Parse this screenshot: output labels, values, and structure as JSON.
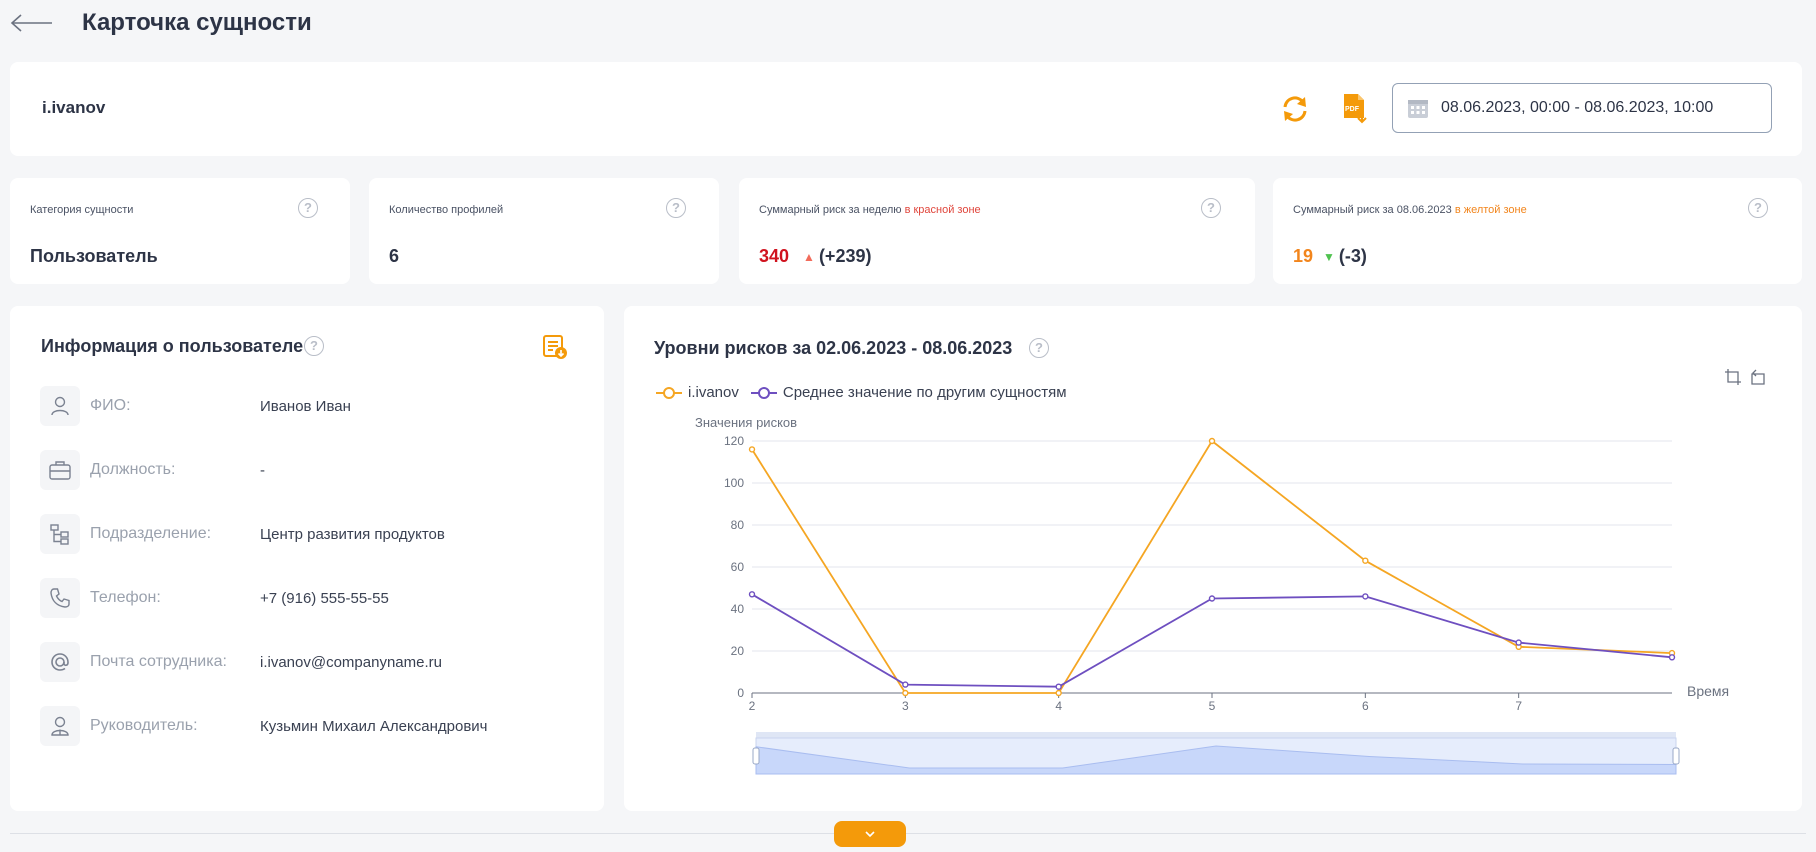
{
  "header": {
    "title": "Карточка сущности"
  },
  "entity": {
    "name": "i.ivanov",
    "date_range": "08.06.2023, 00:00 - 08.06.2023, 10:00",
    "pdf_label": "PDF"
  },
  "kpis": [
    {
      "label": "Категория сущности",
      "value": "Пользователь"
    },
    {
      "label": "Количество профилей",
      "value": "6"
    },
    {
      "label_prefix": "Суммарный риск за неделю ",
      "label_zone": "в красной зоне",
      "value": "340",
      "delta_icon": "▲",
      "delta": "(+239)"
    },
    {
      "label_prefix": "Суммарный риск за 08.06.2023 ",
      "label_zone": "в желтой зоне",
      "value": "19",
      "delta_icon": "▼",
      "delta": "(-3)"
    }
  ],
  "help_glyph": "?",
  "user_info": {
    "title": "Информация о пользователе",
    "rows": [
      {
        "icon": "person-icon",
        "label": "ФИО:",
        "value": "Иванов Иван"
      },
      {
        "icon": "briefcase-icon",
        "label": "Должность:",
        "value": "-"
      },
      {
        "icon": "org-structure-icon",
        "label": "Подразделение:",
        "value": "Центр развития продуктов"
      },
      {
        "icon": "phone-icon",
        "label": "Телефон:",
        "value": "+7 (916) 555-55-55"
      },
      {
        "icon": "at-icon",
        "label": "Почта сотрудника:",
        "value": "i.ivanov@companyname.ru"
      },
      {
        "icon": "manager-icon",
        "label": "Руководитель:",
        "value": "Кузьмин Михаил Александрович"
      }
    ]
  },
  "risk_chart": {
    "title": "Уровни рисков за 02.06.2023 - 08.06.2023"
  },
  "colors": {
    "accent": "#f49a0a",
    "series_user": "#f5a623",
    "series_avg": "#6e4fc0",
    "text": "#2d3446"
  },
  "chart_data": {
    "type": "line",
    "ylabel": "Значения рисков",
    "xlabel": "Время",
    "x": [
      2,
      3,
      4,
      5,
      6,
      7,
      8
    ],
    "x_ticks": [
      2,
      3,
      4,
      5,
      6,
      7
    ],
    "ylim": [
      0,
      120
    ],
    "y_ticks": [
      0,
      20,
      40,
      60,
      80,
      100,
      120
    ],
    "grid": true,
    "legend_position": "top-left",
    "series": [
      {
        "name": "i.ivanov",
        "values": [
          116,
          0,
          0,
          120,
          63,
          22,
          19
        ]
      },
      {
        "name": "Среднее значение по другим сущностям",
        "values": [
          47,
          4,
          3,
          45,
          46,
          24,
          17
        ]
      }
    ]
  }
}
